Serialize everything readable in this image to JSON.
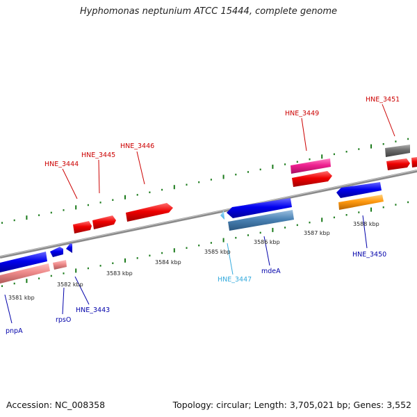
{
  "title": "Hyphomonas neptunium ATCC 15444, complete genome",
  "footer": {
    "accession": "Accession: NC_008358",
    "info": "Topology: circular; Length: 3,705,021 bp; Genes: 3,552"
  },
  "colors": {
    "backbone": "#8a8a8a",
    "tick": "#1a7a1a",
    "forward_label": "#cc0000",
    "reverse_label": "#0000aa",
    "highlight_label": "#33aadd"
  },
  "kbp_labels": [
    "3581 kbp",
    "3582 kbp",
    "3583 kbp",
    "3584 kbp",
    "3585 kbp",
    "3586 kbp",
    "3587 kbp",
    "3588 kbp"
  ],
  "gene_labels": {
    "hne3444": "HNE_3444",
    "hne3445": "HNE_3445",
    "hne3446": "HNE_3446",
    "hne3449": "HNE_3449",
    "hne3451": "HNE_3451",
    "pnpA": "pnpA",
    "rpsO": "rpsO",
    "hne3443": "HNE_3443",
    "hne3447": "HNE_3447",
    "mdeA": "mdeA",
    "hne3450": "HNE_3450"
  }
}
